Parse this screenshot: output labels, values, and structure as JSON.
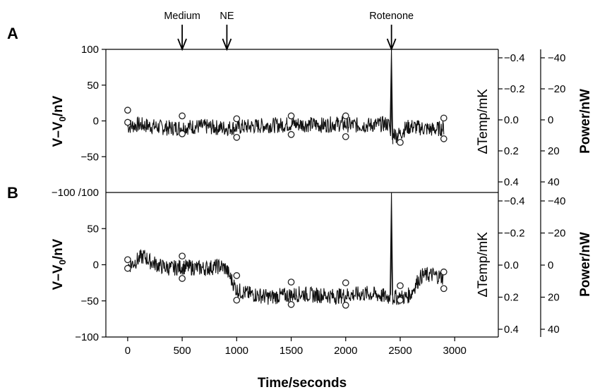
{
  "chart_data": [
    {
      "type": "line",
      "panel": "A",
      "xlim": [
        -200,
        3400
      ],
      "ylim": [
        -100,
        100
      ],
      "ylabel": "V–V0/nV",
      "right_axis_1": {
        "label": "∆Temp/mK",
        "ticks": [
          "−0.4",
          "−0.2",
          "0.0",
          "0.2",
          "0.4"
        ],
        "values": [
          -0.4,
          -0.2,
          0.0,
          0.2,
          0.4
        ]
      },
      "right_axis_2": {
        "label": "Power/nW",
        "ticks": [
          "−40",
          "−20",
          "0",
          "20",
          "40"
        ],
        "values": [
          -40,
          -20,
          0,
          20,
          40
        ]
      },
      "y_ticks": [
        "100",
        "50",
        "0",
        "−50"
      ],
      "y_tick_values": [
        100,
        50,
        0,
        -50
      ],
      "trace": {
        "x": [
          0,
          100,
          200,
          300,
          400,
          500,
          600,
          700,
          800,
          900,
          1000,
          1100,
          1200,
          1300,
          1400,
          1500,
          1600,
          1700,
          1800,
          1900,
          2000,
          2100,
          2200,
          2300,
          2380,
          2400,
          2415,
          2420,
          2425,
          2430,
          2440,
          2460,
          2500,
          2550,
          2600,
          2700,
          2800,
          2900
        ],
        "y": [
          -8,
          -5,
          -7,
          -9,
          -10,
          -9,
          -8,
          -8,
          -9,
          -10,
          -9,
          -8,
          -7,
          -6,
          -6,
          -4,
          -5,
          -5,
          -6,
          -4,
          -5,
          -6,
          -6,
          -5,
          -4,
          -6,
          -25,
          100,
          -20,
          -30,
          -15,
          -20,
          -18,
          -10,
          -8,
          -10,
          -12,
          -10
        ]
      },
      "circles": {
        "x": [
          0,
          0,
          500,
          500,
          1000,
          1000,
          1500,
          1500,
          2000,
          2000,
          2500,
          2900,
          2900
        ],
        "y": [
          15,
          -2,
          7,
          -18,
          3,
          -23,
          7,
          -19,
          7,
          -22,
          -30,
          4,
          -25
        ]
      },
      "annotations": [
        {
          "label": "Medium",
          "x": 500
        },
        {
          "label": "NE",
          "x": 910
        },
        {
          "label": "Rotenone",
          "x": 2420
        }
      ]
    },
    {
      "type": "line",
      "panel": "B",
      "xlim": [
        -200,
        3400
      ],
      "ylim": [
        -100,
        100
      ],
      "xlabel": "Time/seconds",
      "x_ticks": [
        "0",
        "500",
        "1000",
        "1500",
        "2000",
        "2500",
        "3000"
      ],
      "x_tick_values": [
        0,
        500,
        1000,
        1500,
        2000,
        2500,
        3000
      ],
      "ylabel": "V–V0/nV",
      "right_axis_1": {
        "label": "∆Temp/mK",
        "ticks": [
          "−0.4",
          "−0.2",
          "0.0",
          "0.2",
          "0.4"
        ],
        "values": [
          -0.4,
          -0.2,
          0.0,
          0.2,
          0.4
        ]
      },
      "right_axis_2": {
        "label": "Power/nW",
        "ticks": [
          "−40",
          "−20",
          "0",
          "20",
          "40"
        ],
        "values": [
          -40,
          -20,
          0,
          20,
          40
        ]
      },
      "y_ticks": [
        "50",
        "0",
        "−50",
        "−100"
      ],
      "y_tick_values": [
        50,
        0,
        -50,
        -100
      ],
      "trace": {
        "x": [
          0,
          50,
          100,
          150,
          200,
          300,
          400,
          500,
          600,
          700,
          800,
          850,
          900,
          950,
          1000,
          1100,
          1200,
          1300,
          1400,
          1500,
          1600,
          1700,
          1800,
          1900,
          2000,
          2100,
          2200,
          2300,
          2400,
          2415,
          2420,
          2425,
          2435,
          2450,
          2500,
          2550,
          2600,
          2650,
          2700,
          2800,
          2900
        ],
        "y": [
          -2,
          2,
          8,
          12,
          5,
          -2,
          -5,
          -3,
          -4,
          -5,
          -3,
          -2,
          -5,
          -20,
          -35,
          -40,
          -42,
          -45,
          -43,
          -42,
          -40,
          -42,
          -42,
          -44,
          -42,
          -41,
          -40,
          -42,
          -45,
          -40,
          130,
          -40,
          -45,
          -45,
          -45,
          -45,
          -40,
          -25,
          -15,
          -14,
          -18
        ]
      },
      "circles": {
        "x": [
          0,
          0,
          500,
          500,
          1000,
          1000,
          1500,
          1500,
          2000,
          2000,
          2500,
          2500,
          2900,
          2900
        ],
        "y": [
          7,
          -5,
          12,
          -19,
          -15,
          -49,
          -24,
          -55,
          -25,
          -56,
          -29,
          -49,
          -10,
          -33
        ]
      },
      "annotations": []
    }
  ]
}
